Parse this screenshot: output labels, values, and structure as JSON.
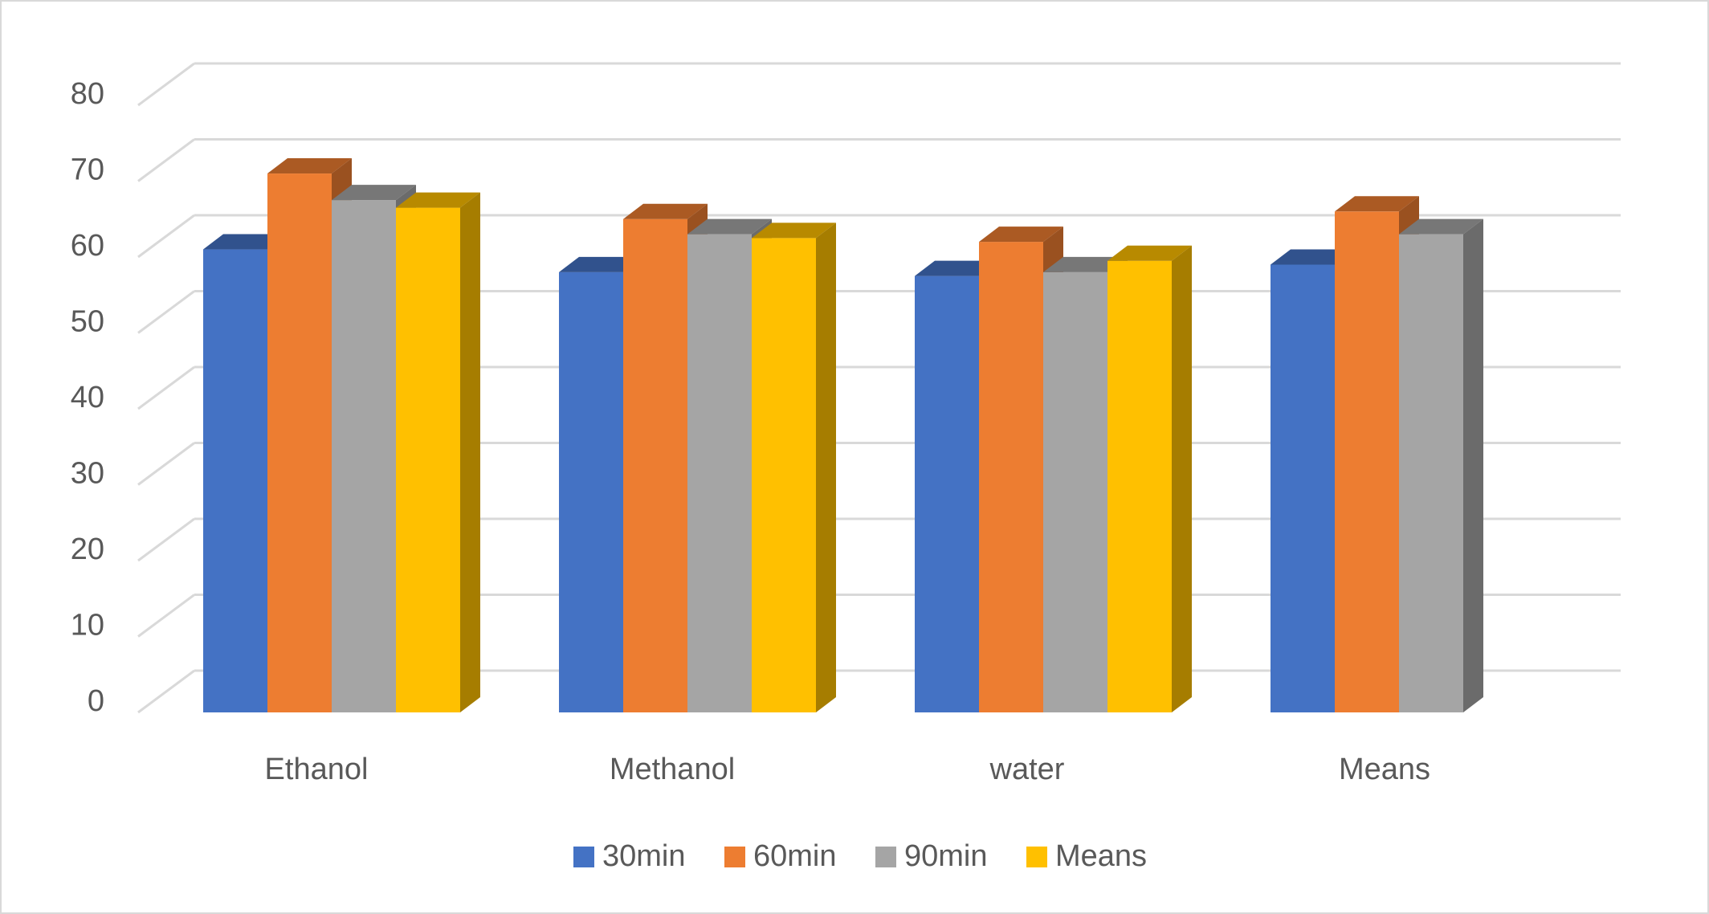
{
  "chart_data": {
    "type": "bar",
    "style": "3d-clustered-column",
    "title": "",
    "xlabel": "",
    "ylabel": "",
    "categories": [
      "Ethanol",
      "Methanol",
      "water",
      "Means"
    ],
    "ylim": [
      0,
      80
    ],
    "yticks": [
      0,
      10,
      20,
      30,
      40,
      50,
      60,
      70,
      80
    ],
    "grid": true,
    "legend_position": "bottom",
    "series": [
      {
        "name": "30min",
        "color": "#4472C4",
        "values": [
          61,
          58,
          57.5,
          59
        ]
      },
      {
        "name": "60min",
        "color": "#ED7D31",
        "values": [
          71,
          65,
          62,
          66
        ]
      },
      {
        "name": "90min",
        "color": "#A5A5A5",
        "values": [
          67.5,
          63,
          58,
          63
        ]
      },
      {
        "name": "Means",
        "color": "#FFC000",
        "values": [
          66.5,
          62.5,
          59.5,
          null
        ]
      }
    ]
  }
}
